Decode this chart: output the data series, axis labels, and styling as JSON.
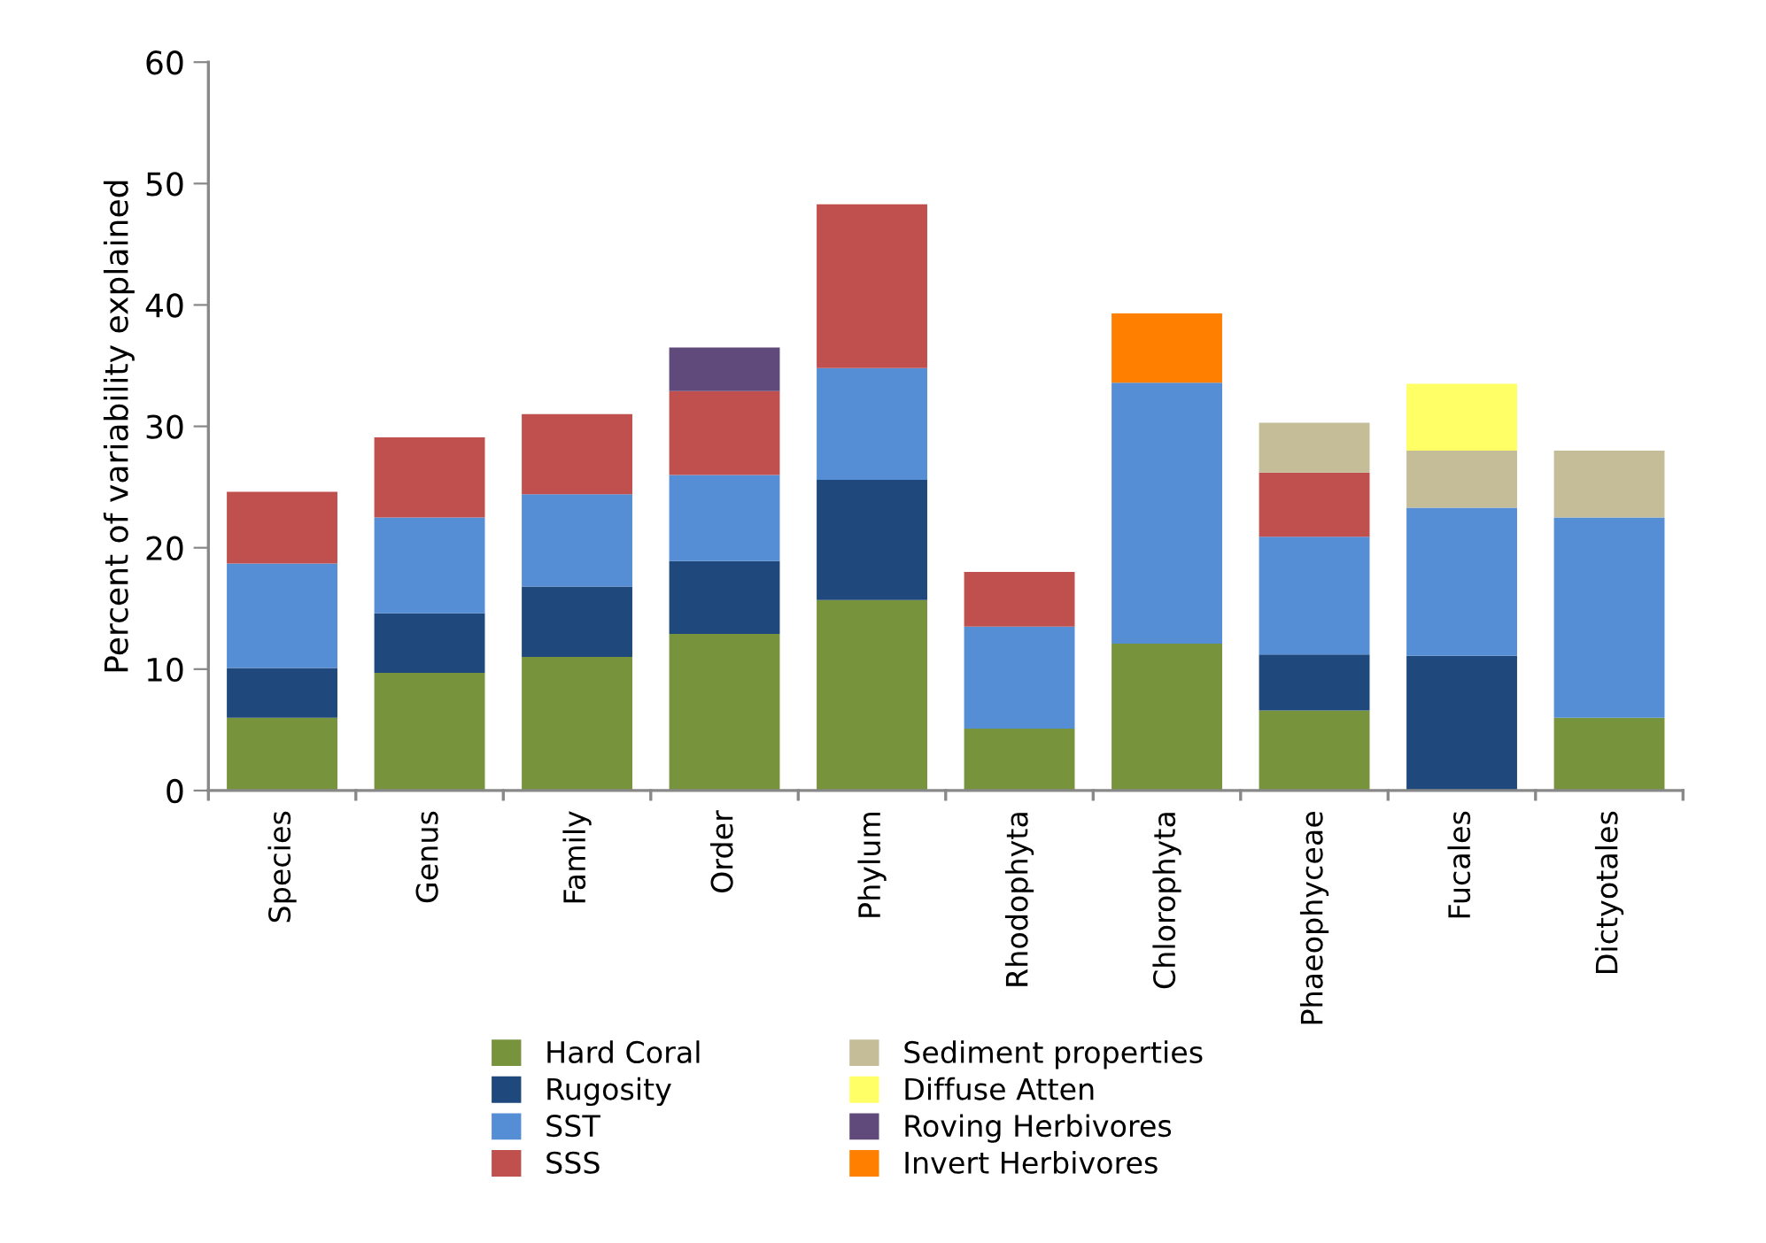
{
  "chart_data": {
    "type": "bar",
    "stacked": true,
    "ylabel": "Percent of variability explained",
    "categories": [
      "Species",
      "Genus",
      "Family",
      "Order",
      "Phylum",
      "Rhodophyta",
      "Chlorophyta",
      "Phaeophyceae",
      "Fucales",
      "Dictyotales"
    ],
    "series": [
      {
        "name": "Hard Coral",
        "color": "#77933c",
        "values": [
          6.0,
          9.7,
          11.0,
          12.9,
          15.7,
          5.1,
          12.1,
          6.6,
          null,
          6.0
        ]
      },
      {
        "name": "Rugosity",
        "color": "#1f497d",
        "values": [
          4.1,
          4.9,
          5.8,
          6.0,
          9.9,
          null,
          null,
          4.6,
          11.1,
          null
        ]
      },
      {
        "name": "SST",
        "color": "#558ed5",
        "values": [
          8.6,
          7.9,
          7.6,
          7.1,
          9.2,
          8.4,
          21.5,
          9.7,
          12.2,
          16.5
        ]
      },
      {
        "name": "SSS",
        "color": "#c0504d",
        "values": [
          5.9,
          6.6,
          6.6,
          6.9,
          13.5,
          4.5,
          null,
          5.3,
          null,
          null
        ]
      },
      {
        "name": "Sediment properties",
        "color": "#c4bd97",
        "values": [
          null,
          null,
          null,
          null,
          null,
          null,
          null,
          4.1,
          4.7,
          5.5
        ]
      },
      {
        "name": "Diffuse Atten",
        "color": "#ffff66",
        "values": [
          null,
          null,
          null,
          null,
          null,
          null,
          null,
          null,
          5.5,
          null
        ]
      },
      {
        "name": "Roving Herbivores",
        "color": "#604a7b",
        "values": [
          null,
          null,
          null,
          3.6,
          null,
          null,
          null,
          null,
          null,
          null
        ]
      },
      {
        "name": "Invert Herbivores",
        "color": "#ff8000",
        "values": [
          null,
          null,
          null,
          null,
          null,
          null,
          5.7,
          null,
          null,
          null
        ]
      }
    ],
    "ylim": [
      0,
      60
    ],
    "yticks": [
      0,
      10,
      20,
      30,
      40,
      50,
      60
    ],
    "grid": false,
    "legend": "bottom"
  }
}
